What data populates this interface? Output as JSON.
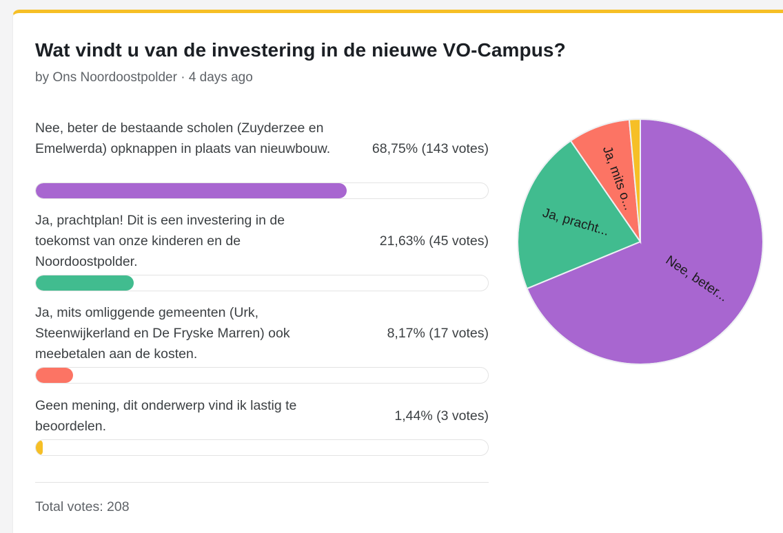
{
  "poll": {
    "title": "Wat vindt u van de investering in de nieuwe VO-Campus?",
    "meta": "by Ons Noordoostpolder · 4 days ago",
    "total_label": "Total votes: 208",
    "accent_color": "#f6bf26"
  },
  "chart_data": {
    "type": "pie",
    "total_votes": 208,
    "slices": [
      {
        "label": "Nee, beter de bestaande scholen (Zuyderzee en Emelwerda) opknappen in plaats van nieuwbouw.",
        "short_label": "Nee, beter...",
        "percent_text": "68,75% (143 votes)",
        "percent": 68.75,
        "votes": 143,
        "color": "#a866d0"
      },
      {
        "label": "Ja, prachtplan! Dit is een investering in de toekomst van onze kinderen en de Noordoostpolder.",
        "short_label": "Ja, pracht...",
        "percent_text": "21,63% (45 votes)",
        "percent": 21.63,
        "votes": 45,
        "color": "#41bc8f"
      },
      {
        "label": "Ja, mits omliggende gemeenten (Urk, Steenwijkerland en De Fryske Marren) ook meebetalen aan de kosten.",
        "short_label": "Ja, mits o...",
        "percent_text": "8,17% (17 votes)",
        "percent": 8.17,
        "votes": 17,
        "color": "#fc7464"
      },
      {
        "label": "Geen mening, dit onderwerp vind ik lastig te beoordelen.",
        "short_label": "",
        "percent_text": "1,44% (3 votes)",
        "percent": 1.44,
        "votes": 3,
        "color": "#f6bf26"
      }
    ]
  }
}
